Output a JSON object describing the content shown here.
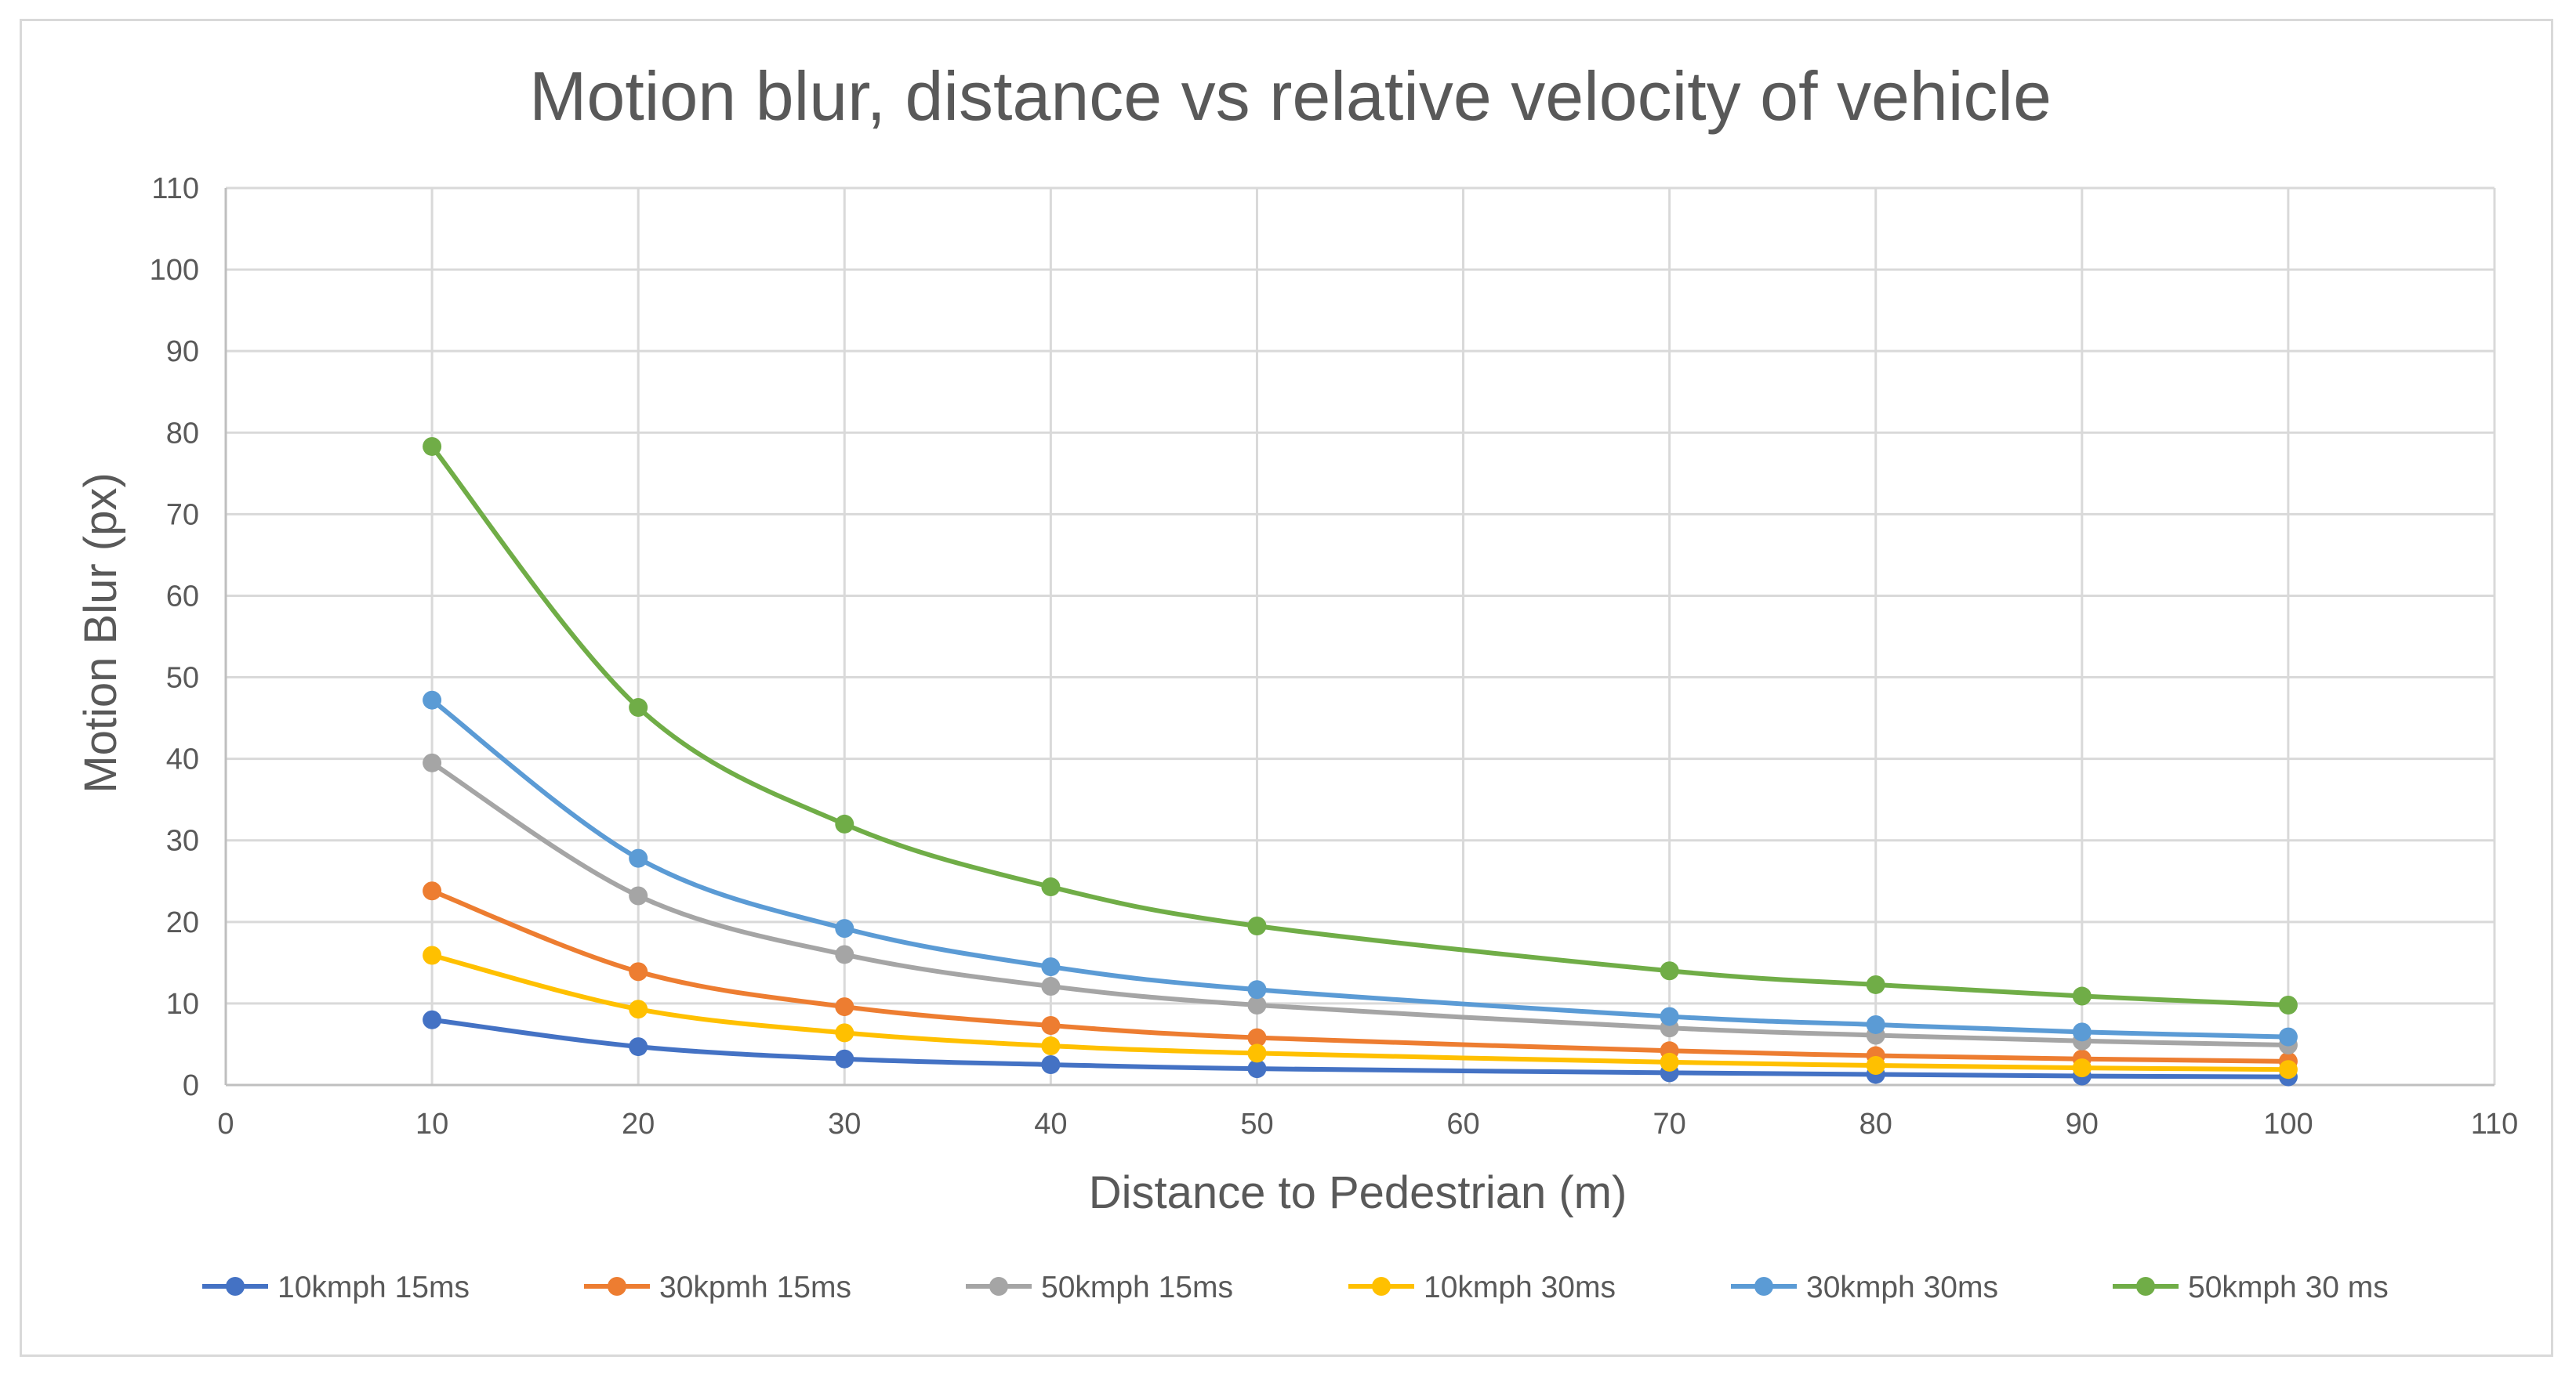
{
  "chart_data": {
    "type": "line",
    "title": "Motion blur, distance vs relative velocity of vehicle",
    "xlabel": "Distance to Pedestrian (m)",
    "ylabel": "Motion Blur (px)",
    "xlim": [
      0,
      110
    ],
    "ylim": [
      0,
      110
    ],
    "xticks": [
      0,
      10,
      20,
      30,
      40,
      50,
      60,
      70,
      80,
      90,
      100,
      110
    ],
    "yticks": [
      0,
      10,
      20,
      30,
      40,
      50,
      60,
      70,
      80,
      90,
      100,
      110
    ],
    "grid": true,
    "smooth": true,
    "legend_position": "bottom",
    "x": [
      10,
      20,
      30,
      40,
      50,
      70,
      80,
      90,
      100
    ],
    "series": [
      {
        "name": "10kmph 15ms",
        "color": "#4472C4",
        "values": [
          8.0,
          4.7,
          3.2,
          2.5,
          2.0,
          1.5,
          1.3,
          1.1,
          1.0
        ]
      },
      {
        "name": "30kpmh 15ms",
        "color": "#ED7D31",
        "values": [
          23.8,
          13.9,
          9.6,
          7.3,
          5.8,
          4.2,
          3.6,
          3.2,
          2.9
        ]
      },
      {
        "name": "50kmph 15ms",
        "color": "#A5A5A5",
        "values": [
          39.5,
          23.2,
          16.0,
          12.1,
          9.8,
          7.0,
          6.1,
          5.4,
          4.9
        ]
      },
      {
        "name": "10kmph 30ms",
        "color": "#FFC000",
        "values": [
          15.9,
          9.3,
          6.4,
          4.8,
          3.9,
          2.8,
          2.4,
          2.1,
          1.9
        ]
      },
      {
        "name": "30kmph 30ms",
        "color": "#5B9BD5",
        "values": [
          47.2,
          27.8,
          19.2,
          14.5,
          11.7,
          8.4,
          7.4,
          6.5,
          5.9
        ]
      },
      {
        "name": "50kmph 30 ms",
        "color": "#70AD47",
        "values": [
          78.3,
          46.3,
          32.0,
          24.3,
          19.5,
          14.0,
          12.3,
          10.9,
          9.8
        ]
      }
    ]
  }
}
